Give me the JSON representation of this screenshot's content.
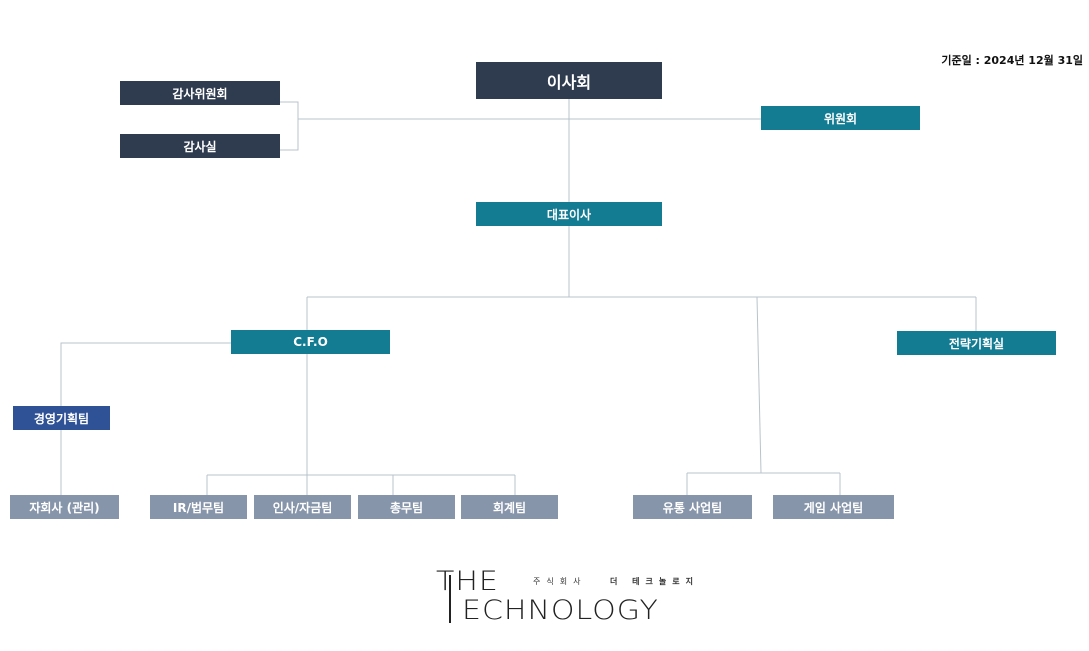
{
  "date_note": "기준일 : 2024년 12월 31일",
  "nodes": [
    {
      "label": "이사회"
    },
    {
      "label": "감사위원회"
    },
    {
      "label": "감사실"
    },
    {
      "label": "위원회"
    },
    {
      "label": "대표이사"
    },
    {
      "label": "C.F.O"
    },
    {
      "label": "전략기획실"
    },
    {
      "label": "경영기획팀"
    },
    {
      "label": "자회사 (관리)"
    },
    {
      "label": "IR/법무팀"
    },
    {
      "label": "인사/자금팀"
    },
    {
      "label": "총무팀"
    },
    {
      "label": "회계팀"
    },
    {
      "label": "유통 사업팀"
    },
    {
      "label": "게임 사업팀"
    }
  ],
  "logo": {
    "top": "THE",
    "bottom": "ECHNOLOGY",
    "company_prefix": "주식회사",
    "company_name": "더 테크놀로지"
  }
}
